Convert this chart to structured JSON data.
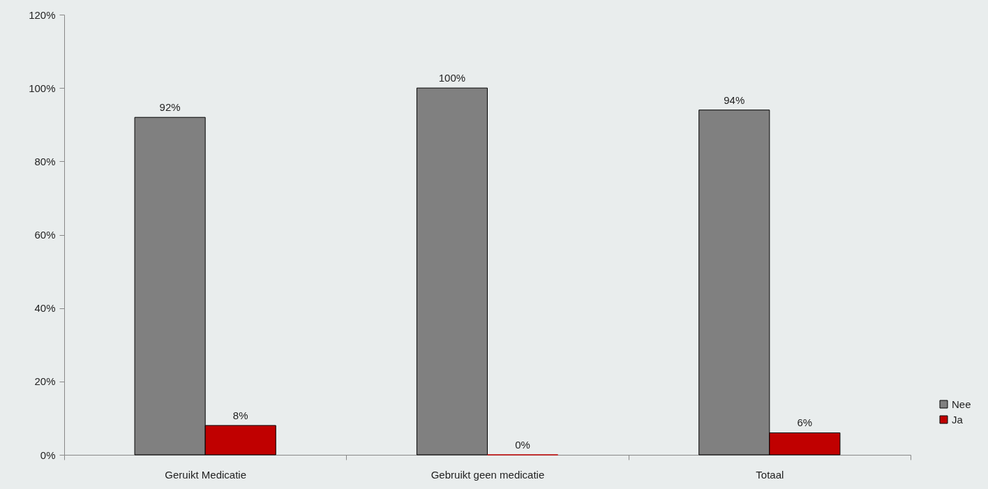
{
  "chart_data": {
    "type": "bar",
    "categories": [
      "Geruikt Medicatie",
      "Gebruikt geen medicatie",
      "Totaal"
    ],
    "series": [
      {
        "name": "Nee",
        "color": "#808080",
        "values": [
          92,
          100,
          94
        ],
        "value_labels": [
          "92%",
          "100%",
          "94%"
        ]
      },
      {
        "name": "Ja",
        "color": "#c00000",
        "values": [
          8,
          0,
          6
        ],
        "value_labels": [
          "8%",
          "0%",
          "6%"
        ]
      }
    ],
    "ylim": [
      0,
      120
    ],
    "yticks": [
      {
        "value": 0,
        "label": "0%"
      },
      {
        "value": 20,
        "label": "20%"
      },
      {
        "value": 40,
        "label": "40%"
      },
      {
        "value": 60,
        "label": "60%"
      },
      {
        "value": 80,
        "label": "80%"
      },
      {
        "value": 100,
        "label": "100%"
      },
      {
        "value": 120,
        "label": "120%"
      }
    ],
    "grid": false,
    "legend": "right"
  }
}
